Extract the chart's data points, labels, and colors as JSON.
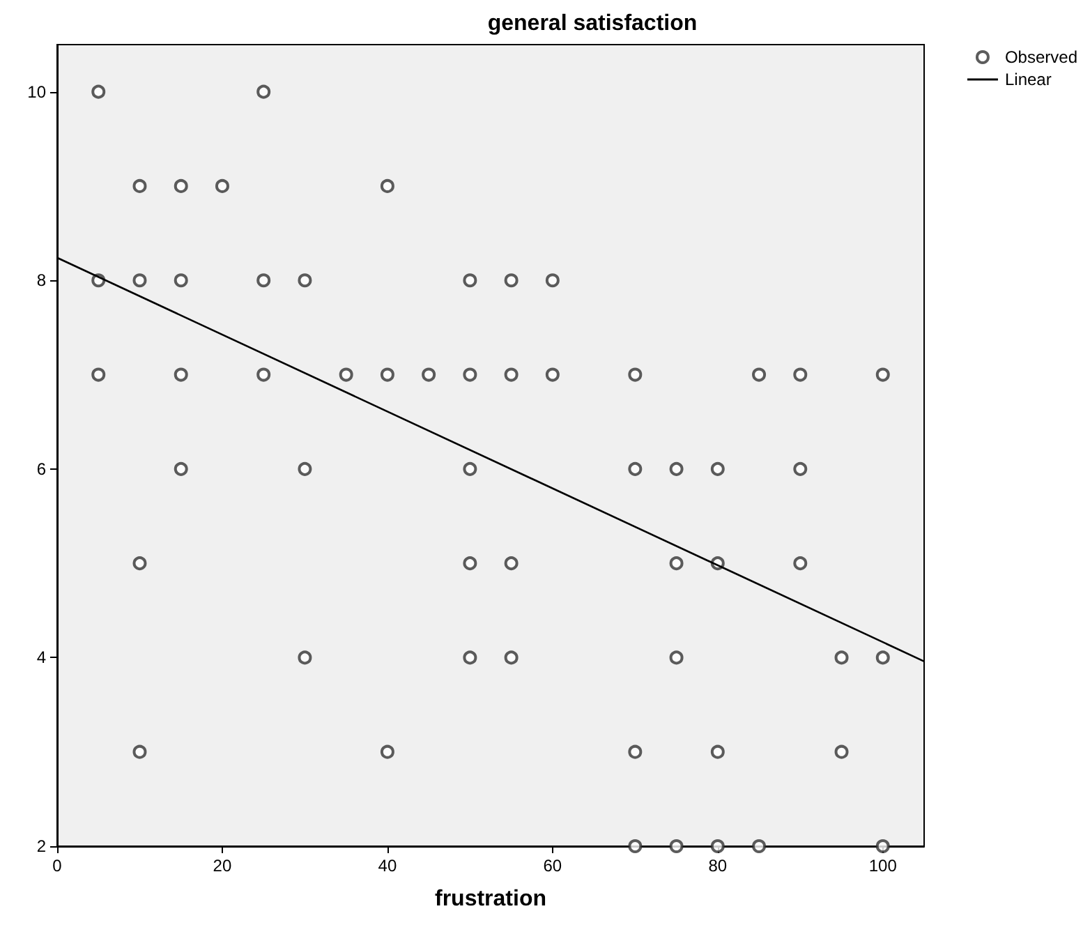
{
  "chart_data": {
    "type": "scatter",
    "title": "general satisfaction",
    "xlabel": "frustration",
    "xlim": [
      0,
      105
    ],
    "xticks": [
      0,
      20,
      40,
      60,
      80,
      100
    ],
    "ylim": [
      2,
      10.5
    ],
    "yticks": [
      2,
      4,
      6,
      8,
      10
    ],
    "grid": false,
    "legend": "top right",
    "marker": "circle",
    "series": [
      {
        "name": "Observed",
        "color": "#333333",
        "x": [
          5,
          25,
          10,
          15,
          20,
          40,
          5,
          10,
          15,
          25,
          30,
          50,
          55,
          60,
          5,
          15,
          25,
          35,
          40,
          45,
          50,
          55,
          60,
          70,
          85,
          90,
          100,
          15,
          30,
          50,
          70,
          75,
          80,
          90,
          10,
          50,
          55,
          75,
          80,
          90,
          30,
          50,
          55,
          75,
          95,
          100,
          10,
          40,
          70,
          80,
          95,
          70,
          75,
          80,
          85,
          100
        ],
        "values": [
          10,
          10,
          9,
          9,
          9,
          9,
          8,
          8,
          8,
          8,
          8,
          8,
          8,
          8,
          7,
          7,
          7,
          7,
          7,
          7,
          7,
          7,
          7,
          7,
          7,
          7,
          7,
          6,
          6,
          6,
          6,
          6,
          6,
          6,
          5,
          5,
          5,
          5,
          5,
          5,
          4,
          4,
          4,
          4,
          4,
          4,
          3,
          3,
          3,
          3,
          3,
          2,
          2,
          2,
          2,
          2
        ]
      },
      {
        "name": "Linear",
        "type": "line",
        "color": "#000000",
        "line_style": "solid",
        "marker": "none",
        "x": [
          0,
          105
        ],
        "values": [
          8.24,
          3.96
        ]
      }
    ]
  }
}
